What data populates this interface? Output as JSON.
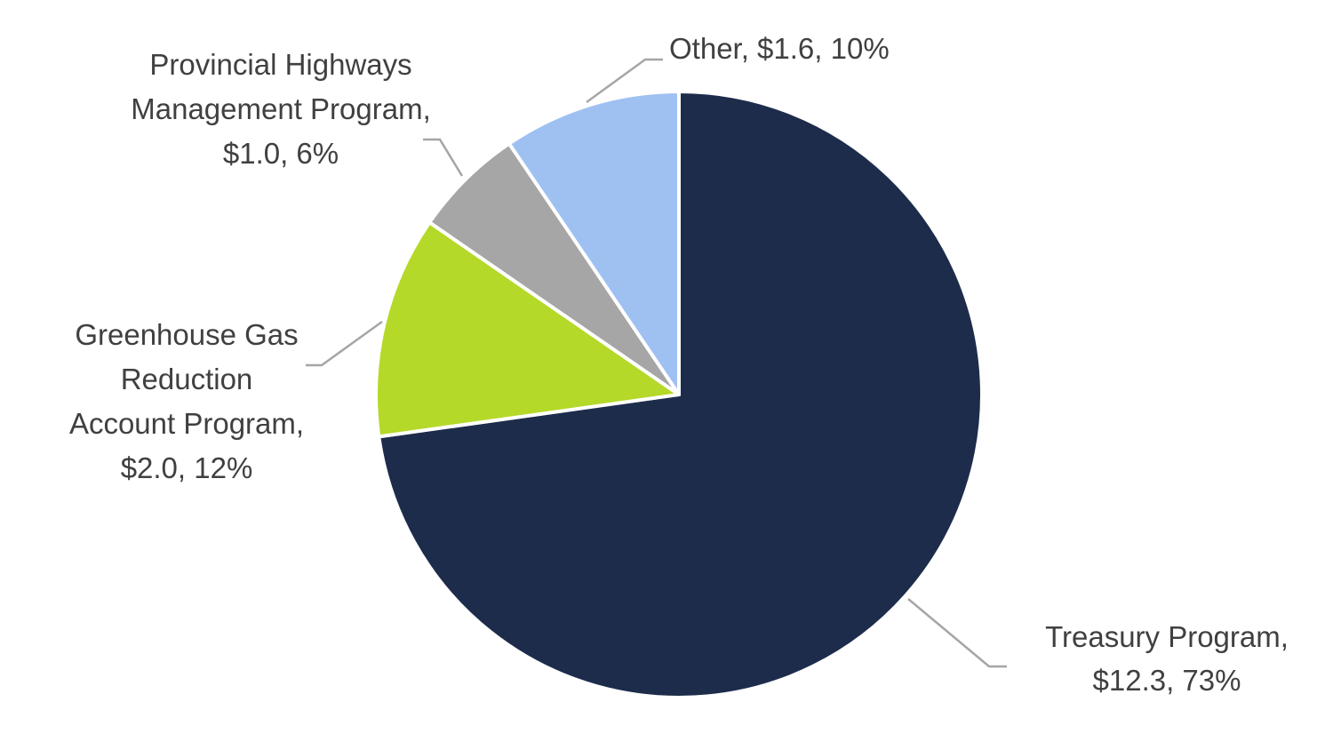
{
  "chart_data": {
    "type": "pie",
    "title": "",
    "unit": "$",
    "start": "12 o'clock",
    "direction": "clockwise",
    "slices": [
      {
        "name": "Treasury Program",
        "value": 12.3,
        "percent": 73,
        "color": "#1d2c4b",
        "label_lines": [
          "Treasury Program,",
          "$12.3, 73%"
        ]
      },
      {
        "name": "Greenhouse Gas Reduction Account Program",
        "value": 2.0,
        "percent": 12,
        "color": "#b4d929",
        "label_lines": [
          "Greenhouse Gas",
          "Reduction",
          "Account Program,",
          "$2.0, 12%"
        ]
      },
      {
        "name": "Provincial Highways Management Program",
        "value": 1.0,
        "percent": 6,
        "color": "#a6a6a6",
        "label_lines": [
          "Provincial Highways",
          "Management Program,",
          "$1.0, 6%"
        ]
      },
      {
        "name": "Other",
        "value": 1.6,
        "percent": 10,
        "color": "#9fc1f2",
        "label_lines": [
          "Other, $1.6, 10%"
        ]
      }
    ]
  }
}
